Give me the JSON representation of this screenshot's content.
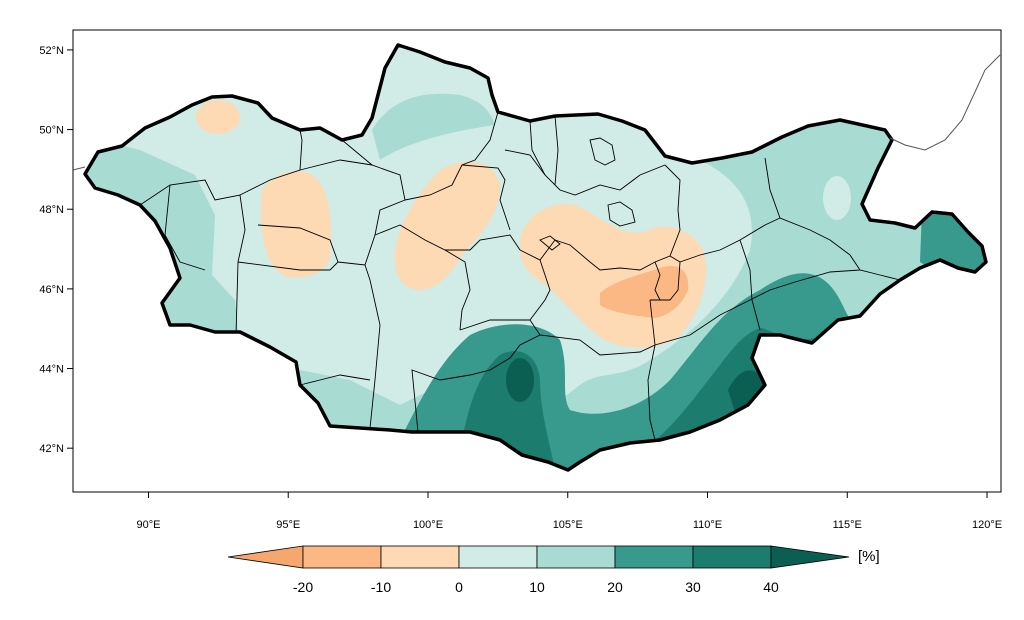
{
  "map": {
    "lat_ticks": [
      "52°N",
      "50°N",
      "48°N",
      "46°N",
      "44°N",
      "42°N"
    ],
    "lon_ticks": [
      "90°E",
      "95°E",
      "100°E",
      "105°E",
      "110°E",
      "115°E",
      "120°E"
    ],
    "extent": {
      "lon_min": 87.3,
      "lon_max": 120.5,
      "lat_min": 40.9,
      "lat_max": 52.5
    }
  },
  "legend": {
    "unit": "[%]",
    "levels": [
      "-20",
      "-10",
      "0",
      "10",
      "20",
      "30",
      "40"
    ],
    "colors": [
      "#f6a76e",
      "#fbb884",
      "#fdd9b4",
      "#d1ebe6",
      "#a8dcd3",
      "#379a8c",
      "#1c7c6e",
      "#0b5e52"
    ]
  }
}
